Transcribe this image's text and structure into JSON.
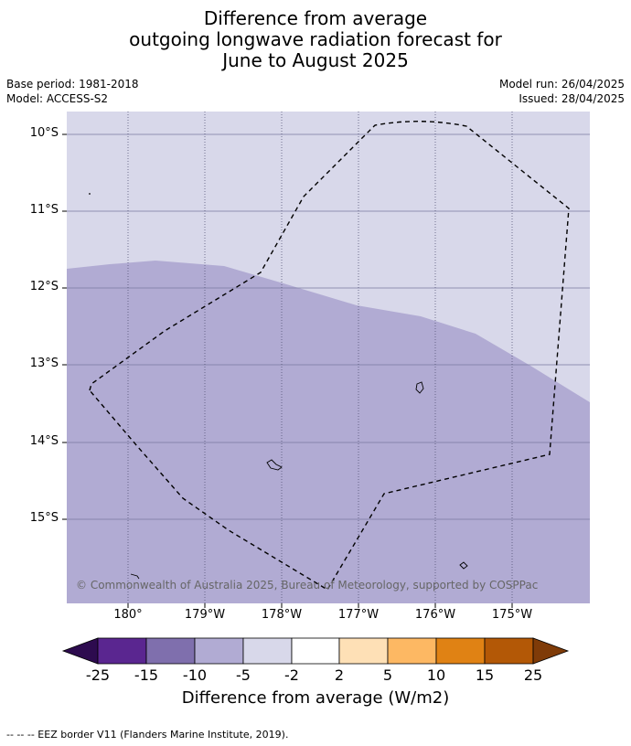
{
  "title": {
    "line1": "Difference from average",
    "line2": "outgoing longwave radiation forecast for",
    "line3": "June to August 2025"
  },
  "meta": {
    "base_period": "Base period: 1981-2018",
    "model": "Model: ACCESS-S2",
    "model_run": "Model run: 26/04/2025",
    "issued": "Issued: 28/04/2025"
  },
  "map": {
    "lat_labels": [
      "10°S",
      "11°S",
      "12°S",
      "13°S",
      "14°S",
      "15°S"
    ],
    "lon_labels": [
      "180°",
      "179°W",
      "178°W",
      "177°W",
      "176°W",
      "175°W"
    ],
    "credit": "© Commonwealth of Australia 2025, Bureau of Meteorology, supported by COSPPac",
    "fill_colors": {
      "minus5_to_minus2": "#d8d8ea",
      "minus10_to_minus5": "#b1abd3"
    }
  },
  "colorbar": {
    "title": "Difference from average (W/m2)",
    "ticks": [
      "-25",
      "-15",
      "-10",
      "-5",
      "-2",
      "2",
      "5",
      "10",
      "15",
      "25"
    ],
    "colors": [
      "#2d0b4f",
      "#5a2690",
      "#7f6fad",
      "#b1abd3",
      "#d8d8ea",
      "#ffffff",
      "#fee0b6",
      "#fdb863",
      "#e08214",
      "#b35806",
      "#7f3b08"
    ]
  },
  "legend_note": "--  --  -- EEZ border V11 (Flanders Marine Institute, 2019)."
}
